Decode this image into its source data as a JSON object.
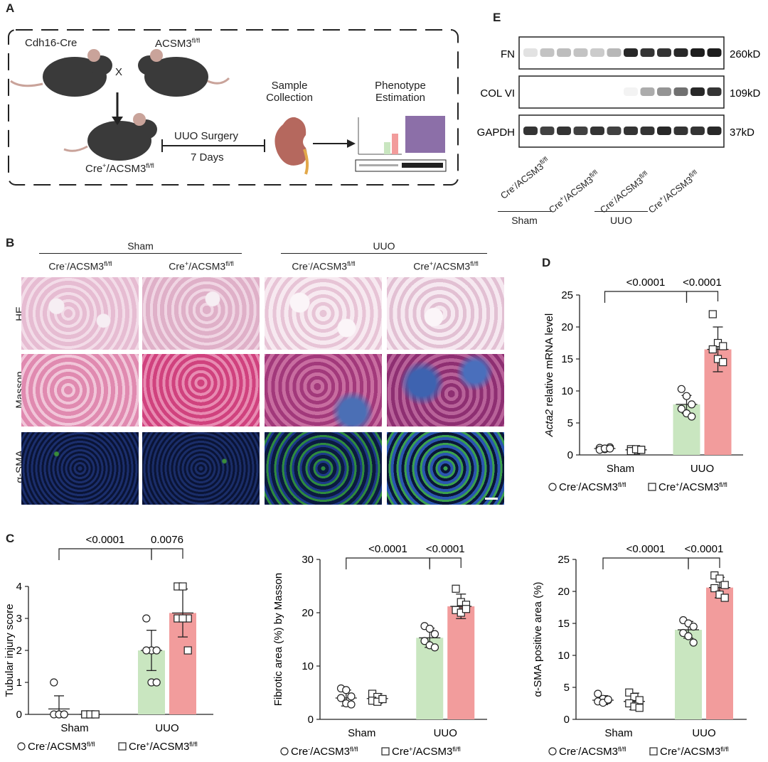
{
  "panel_labels": {
    "a": "A",
    "b": "B",
    "c": "C",
    "d": "D",
    "e": "E"
  },
  "panel_a": {
    "mouse_left": "Cdh16-Cre",
    "mouse_right": "ACSM3",
    "mouse_right_sup": "fl/fl",
    "cross": "X",
    "offspring": "Cre",
    "offspring_sup1": "+",
    "offspring_mid": "/ACSM3",
    "offspring_sup2": "fl/fl",
    "surgery": "UUO Surgery",
    "days": "7 Days",
    "sample_l1": "Sample",
    "sample_l2": "Collection",
    "pheno_l1": "Phenotype",
    "pheno_l2": "Estimation"
  },
  "panel_b": {
    "group_sham": "Sham",
    "group_uuo": "UUO",
    "col_labels": [
      {
        "pre": "Cre",
        "sup": "-",
        "mid": "/ACSM3",
        "sup2": "fl/fl"
      },
      {
        "pre": "Cre",
        "sup": "+",
        "mid": "/ACSM3",
        "sup2": "fl/fl"
      },
      {
        "pre": "Cre",
        "sup": "-",
        "mid": "/ACSM3",
        "sup2": "fl/fl"
      },
      {
        "pre": "Cre",
        "sup": "+",
        "mid": "/ACSM3",
        "sup2": "fl/fl"
      }
    ],
    "row_labels": [
      "HE",
      "Masson",
      "α-SMA"
    ]
  },
  "panel_e": {
    "blots": [
      {
        "name": "FN",
        "size": "260kD"
      },
      {
        "name": "COL VI",
        "size": "109kD"
      },
      {
        "name": "GAPDH",
        "size": "37kD"
      }
    ],
    "lane_labels": [
      {
        "pre": "Cre",
        "sup": "-",
        "mid": "/ACSM3",
        "sup2": "fl/fl"
      },
      {
        "pre": "Cre",
        "sup": "+",
        "mid": "/ACSM3",
        "sup2": "fl/fl"
      },
      {
        "pre": "Cre",
        "sup": "-",
        "mid": "/ACSM3",
        "sup2": "fl/fl"
      },
      {
        "pre": "Cre",
        "sup": "+",
        "mid": "/ACSM3",
        "sup2": "fl/fl"
      }
    ],
    "group_sham": "Sham",
    "group_uuo": "UUO"
  },
  "legend": {
    "ko_neg": {
      "pre": "Cre",
      "sup": "-",
      "mid": "/ACSM3",
      "sup2": "fl/fl"
    },
    "ko_pos": {
      "pre": "Cre",
      "sup": "+",
      "mid": "/ACSM3",
      "sup2": "fl/fl"
    }
  },
  "colors": {
    "green": "#c9e6c0",
    "red": "#f29c9c",
    "ink": "#222222"
  },
  "chart_data": [
    {
      "id": "d",
      "type": "bar",
      "ylabel_italic": "Acta2",
      "ylabel_rest": " relative mRNA level",
      "categories": [
        "Sham",
        "UUO"
      ],
      "ylim": [
        0,
        25
      ],
      "yticks": [
        0,
        5,
        10,
        15,
        20,
        25
      ],
      "series": [
        {
          "name": "Cre-/ACSM3fl/fl",
          "values": [
            1.0,
            7.9
          ],
          "sd": [
            0.2,
            1.4
          ],
          "marker": "circle",
          "points": [
            [
              1.1,
              0.9,
              1.2,
              0.8,
              1.0,
              1.0
            ],
            [
              10.3,
              9.2,
              7.9,
              7.2,
              6.5,
              6.0
            ]
          ]
        },
        {
          "name": "Cre+/ACSM3fl/fl",
          "values": [
            0.8,
            16.5
          ],
          "sd": [
            0.2,
            3.5
          ],
          "marker": "square",
          "points": [
            [
              0.9,
              0.7,
              0.8,
              0.6,
              0.9,
              0.8
            ],
            [
              22.0,
              17.5,
              17.0,
              16.5,
              15.0,
              14.5
            ]
          ]
        }
      ],
      "comparisons": [
        {
          "label": "<0.0001",
          "from": "Sham",
          "to": "UUO"
        },
        {
          "label": "<0.0001",
          "within": "UUO"
        }
      ]
    },
    {
      "id": "c1",
      "type": "bar",
      "ylabel": "Tubular injury score",
      "categories": [
        "Sham",
        "UUO"
      ],
      "ylim": [
        0,
        4
      ],
      "yticks": [
        0,
        1,
        2,
        3,
        4
      ],
      "series": [
        {
          "name": "Cre-/ACSM3fl/fl",
          "values": [
            0.17,
            2.0
          ],
          "sd": [
            0.41,
            0.63
          ],
          "marker": "circle",
          "points": [
            [
              1,
              0,
              0,
              0,
              0,
              0
            ],
            [
              3,
              2,
              2,
              2,
              1,
              1
            ]
          ]
        },
        {
          "name": "Cre+/ACSM3fl/fl",
          "values": [
            0.0,
            3.17
          ],
          "sd": [
            0.0,
            0.75
          ],
          "marker": "square",
          "points": [
            [
              0,
              0,
              0,
              0,
              0,
              0
            ],
            [
              4,
              4,
              3,
              3,
              3,
              2
            ]
          ]
        }
      ],
      "comparisons": [
        {
          "label": "<0.0001",
          "from": "Sham",
          "to": "UUO"
        },
        {
          "label": "0.0076",
          "within": "UUO"
        }
      ]
    },
    {
      "id": "c2",
      "type": "bar",
      "ylabel": "Fibrotic area (%) by Masson",
      "categories": [
        "Sham",
        "UUO"
      ],
      "ylim": [
        0,
        30
      ],
      "yticks": [
        0,
        10,
        20,
        30
      ],
      "series": [
        {
          "name": "Cre-/ACSM3fl/fl",
          "values": [
            4.0,
            15.3
          ],
          "sd": [
            1.5,
            1.8
          ],
          "marker": "circle",
          "points": [
            [
              5.8,
              5.5,
              4.3,
              4.0,
              3.0,
              2.8
            ],
            [
              17.5,
              17.0,
              16.0,
              14.7,
              13.9,
              13.5
            ]
          ]
        },
        {
          "name": "Cre+/ACSM3fl/fl",
          "values": [
            3.9,
            21.2
          ],
          "sd": [
            0.9,
            2.3
          ],
          "marker": "square",
          "points": [
            [
              4.8,
              4.2,
              3.8,
              3.5,
              3.3,
              3.8
            ],
            [
              24.5,
              22.0,
              21.5,
              20.5,
              20.0,
              20.7
            ]
          ]
        }
      ],
      "comparisons": [
        {
          "label": "<0.0001",
          "from": "Sham",
          "to": "UUO"
        },
        {
          "label": "<0.0001",
          "within": "UUO"
        }
      ]
    },
    {
      "id": "c3",
      "type": "bar",
      "ylabel": "α-SMA positive area (%)",
      "categories": [
        "Sham",
        "UUO"
      ],
      "ylim": [
        0,
        25
      ],
      "yticks": [
        0,
        5,
        10,
        15,
        20,
        25
      ],
      "series": [
        {
          "name": "Cre-/ACSM3fl/fl",
          "values": [
            3.0,
            14.0
          ],
          "sd": [
            0.7,
            1.3
          ],
          "marker": "circle",
          "points": [
            [
              4.0,
              3.2,
              3.0,
              2.8,
              2.6,
              3.1
            ],
            [
              15.5,
              15.0,
              14.5,
              13.5,
              13.0,
              12.0
            ]
          ]
        },
        {
          "name": "Cre+/ACSM3fl/fl",
          "values": [
            2.8,
            20.6
          ],
          "sd": [
            1.3,
            1.6
          ],
          "marker": "square",
          "points": [
            [
              4.2,
              3.5,
              3.0,
              2.5,
              2.0,
              1.8
            ],
            [
              22.5,
              22.0,
              21.0,
              20.5,
              19.5,
              19.0
            ]
          ]
        }
      ],
      "comparisons": [
        {
          "label": "<0.0001",
          "from": "Sham",
          "to": "UUO"
        },
        {
          "label": "<0.0001",
          "within": "UUO"
        }
      ]
    }
  ]
}
